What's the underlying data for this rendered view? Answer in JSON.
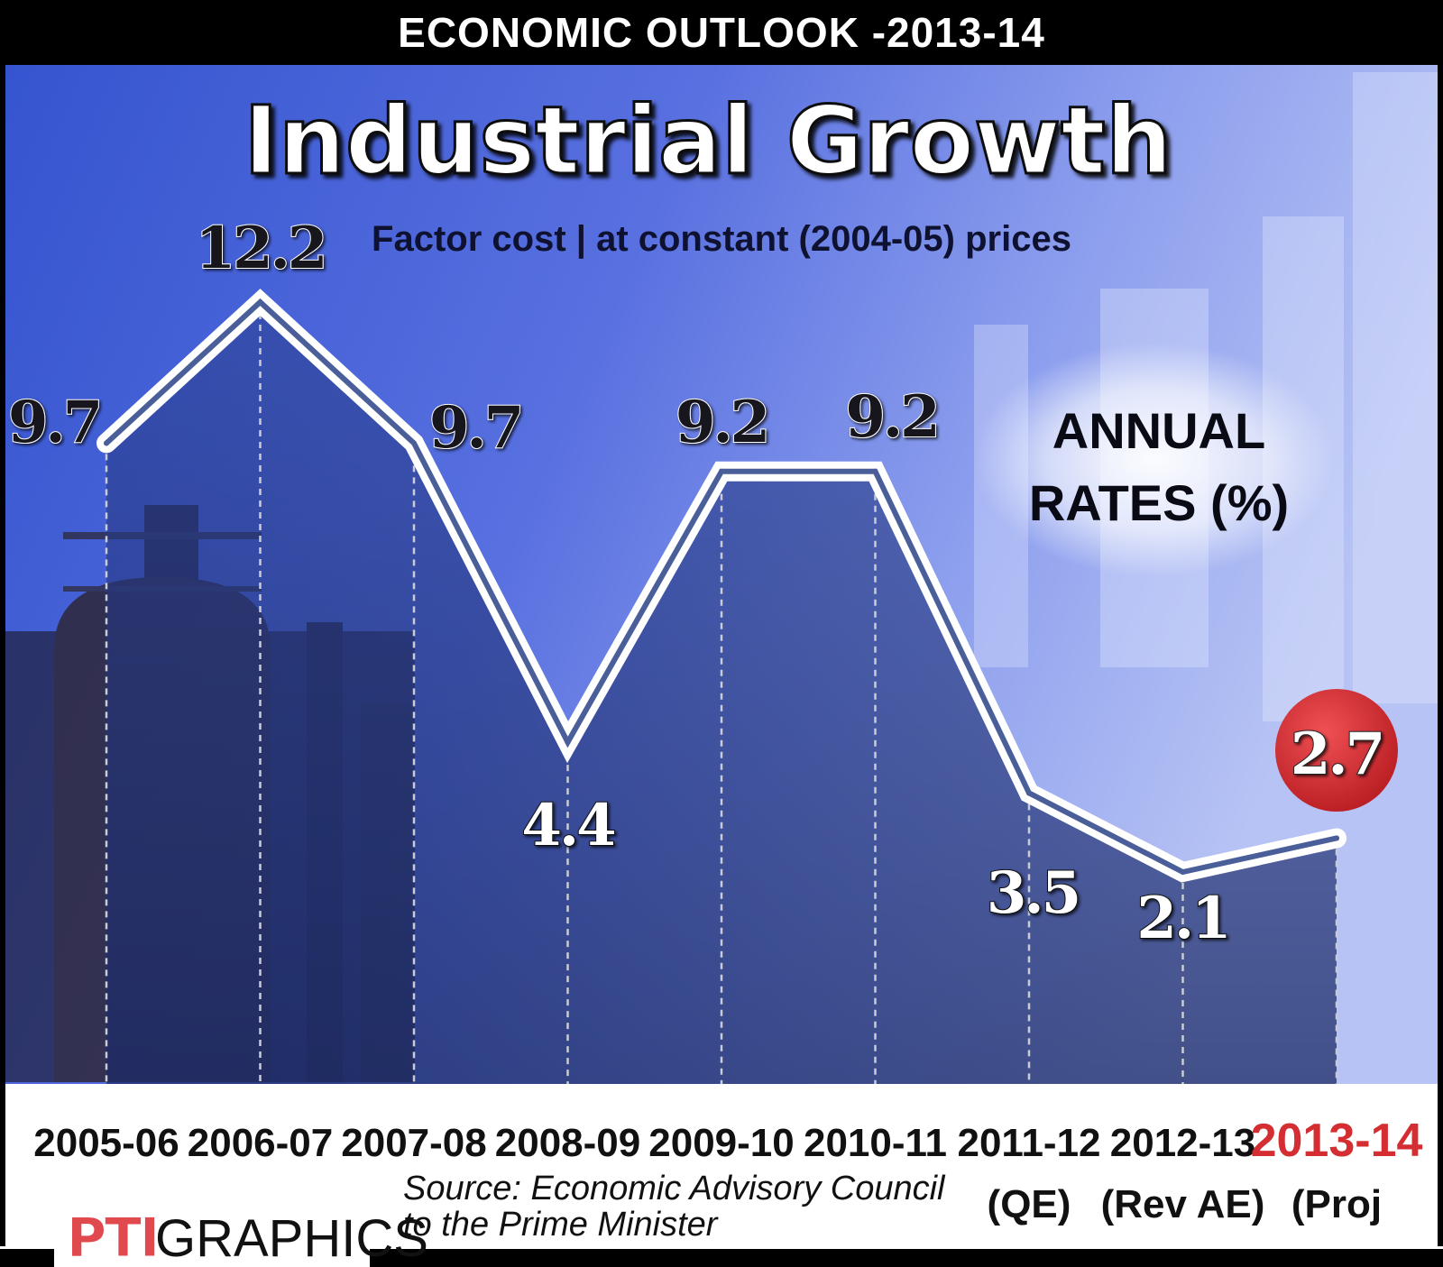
{
  "header": {
    "top_title": "ECONOMIC OUTLOOK -2013-14"
  },
  "chart_data": {
    "type": "line",
    "title": "Industrial Growth",
    "subtitle": "Factor cost | at constant (2004-05) prices",
    "annotation": "ANNUAL RATES (%)",
    "annotation_lines": [
      "ANNUAL",
      "RATES (%)"
    ],
    "categories": [
      "2005-06",
      "2006-07",
      "2007-08",
      "2008-09",
      "2009-10",
      "2010-11",
      "2011-12",
      "2012-13",
      "2013-14"
    ],
    "category_notes": [
      "",
      "",
      "",
      "",
      "",
      "",
      "(QE)",
      "(Rev AE)",
      "(Proj"
    ],
    "series": [
      {
        "name": "Industrial growth (annual rate, %)",
        "values": [
          9.7,
          12.2,
          9.7,
          4.4,
          9.2,
          9.2,
          3.5,
          2.1,
          2.7
        ]
      }
    ],
    "value_labels": [
      "9.7",
      "12.2",
      "9.7",
      "4.4",
      "9.2",
      "9.2",
      "3.5",
      "2.1",
      "2.7"
    ],
    "highlight_index": 8,
    "ylim": [
      0,
      14
    ],
    "xlabel": "",
    "ylabel": "",
    "grid": false
  },
  "footer": {
    "source_line1": "Source: Economic Advisory Council",
    "source_line2": "to the Prime Minister",
    "logo_text": "PTI",
    "brand_text": "GRAPHICS"
  },
  "colors": {
    "background_top": "#3f5fd6",
    "background_mid": "#6f86ec",
    "background_right": "#a9b8f2",
    "line_white": "#ffffff",
    "line_inner": "#4a5f9a",
    "highlight_red": "#d42e32",
    "label_dark": "#1a1a2a",
    "footer_bg": "#ffffff"
  }
}
